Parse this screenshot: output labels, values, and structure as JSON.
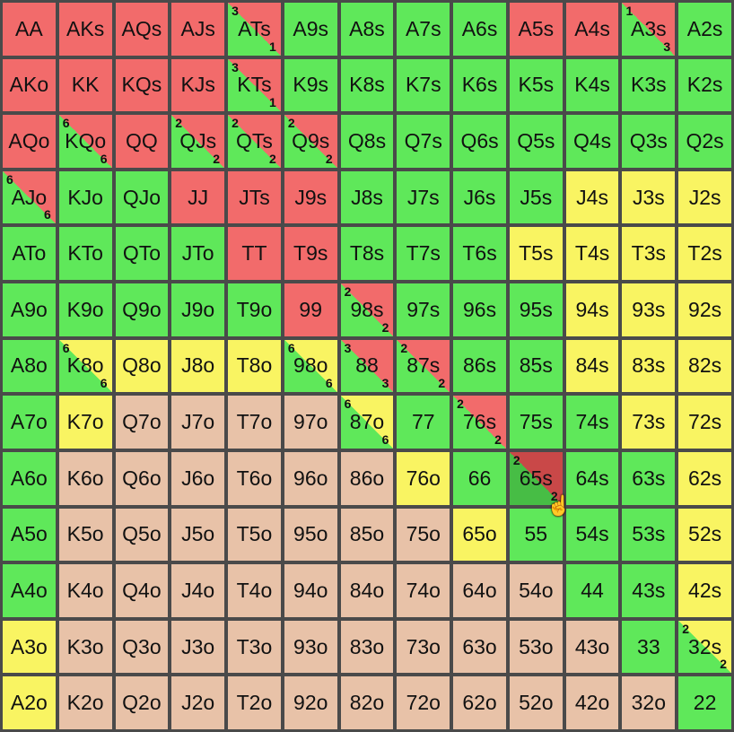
{
  "colors": {
    "red": "#f26b6b",
    "green": "#5fe85a",
    "yellow": "#f9f462",
    "peach": "#e8c2a8",
    "darkred": "#c94848",
    "darkgreen": "#47bd45"
  },
  "rows": [
    [
      {
        "hand": "AA",
        "c": "red"
      },
      {
        "hand": "AKs",
        "c": "red"
      },
      {
        "hand": "AQs",
        "c": "red"
      },
      {
        "hand": "AJs",
        "c": "red"
      },
      {
        "hand": "ATs",
        "c": "split",
        "c1": "red",
        "c2": "green",
        "top": "3",
        "bottom": "1"
      },
      {
        "hand": "A9s",
        "c": "green"
      },
      {
        "hand": "A8s",
        "c": "green"
      },
      {
        "hand": "A7s",
        "c": "green"
      },
      {
        "hand": "A6s",
        "c": "green"
      },
      {
        "hand": "A5s",
        "c": "red"
      },
      {
        "hand": "A4s",
        "c": "red"
      },
      {
        "hand": "A3s",
        "c": "split",
        "c1": "red",
        "c2": "green",
        "top": "1",
        "bottom": "3"
      },
      {
        "hand": "A2s",
        "c": "green"
      }
    ],
    [
      {
        "hand": "AKo",
        "c": "red"
      },
      {
        "hand": "KK",
        "c": "red"
      },
      {
        "hand": "KQs",
        "c": "red"
      },
      {
        "hand": "KJs",
        "c": "red"
      },
      {
        "hand": "KTs",
        "c": "split",
        "c1": "red",
        "c2": "green",
        "top": "3",
        "bottom": "1"
      },
      {
        "hand": "K9s",
        "c": "green"
      },
      {
        "hand": "K8s",
        "c": "green"
      },
      {
        "hand": "K7s",
        "c": "green"
      },
      {
        "hand": "K6s",
        "c": "green"
      },
      {
        "hand": "K5s",
        "c": "green"
      },
      {
        "hand": "K4s",
        "c": "green"
      },
      {
        "hand": "K3s",
        "c": "green"
      },
      {
        "hand": "K2s",
        "c": "green"
      }
    ],
    [
      {
        "hand": "AQo",
        "c": "red"
      },
      {
        "hand": "KQo",
        "c": "split",
        "c1": "red",
        "c2": "green",
        "top": "6",
        "bottom": "6"
      },
      {
        "hand": "QQ",
        "c": "red"
      },
      {
        "hand": "QJs",
        "c": "split",
        "c1": "red",
        "c2": "green",
        "top": "2",
        "bottom": "2"
      },
      {
        "hand": "QTs",
        "c": "split",
        "c1": "red",
        "c2": "green",
        "top": "2",
        "bottom": "2"
      },
      {
        "hand": "Q9s",
        "c": "split",
        "c1": "red",
        "c2": "green",
        "top": "2",
        "bottom": "2"
      },
      {
        "hand": "Q8s",
        "c": "green"
      },
      {
        "hand": "Q7s",
        "c": "green"
      },
      {
        "hand": "Q6s",
        "c": "green"
      },
      {
        "hand": "Q5s",
        "c": "green"
      },
      {
        "hand": "Q4s",
        "c": "green"
      },
      {
        "hand": "Q3s",
        "c": "green"
      },
      {
        "hand": "Q2s",
        "c": "green"
      }
    ],
    [
      {
        "hand": "AJo",
        "c": "split",
        "c1": "red",
        "c2": "green",
        "top": "6",
        "bottom": "6"
      },
      {
        "hand": "KJo",
        "c": "green"
      },
      {
        "hand": "QJo",
        "c": "green"
      },
      {
        "hand": "JJ",
        "c": "red"
      },
      {
        "hand": "JTs",
        "c": "red"
      },
      {
        "hand": "J9s",
        "c": "red"
      },
      {
        "hand": "J8s",
        "c": "green"
      },
      {
        "hand": "J7s",
        "c": "green"
      },
      {
        "hand": "J6s",
        "c": "green"
      },
      {
        "hand": "J5s",
        "c": "green"
      },
      {
        "hand": "J4s",
        "c": "yellow"
      },
      {
        "hand": "J3s",
        "c": "yellow"
      },
      {
        "hand": "J2s",
        "c": "yellow"
      }
    ],
    [
      {
        "hand": "ATo",
        "c": "green"
      },
      {
        "hand": "KTo",
        "c": "green"
      },
      {
        "hand": "QTo",
        "c": "green"
      },
      {
        "hand": "JTo",
        "c": "green"
      },
      {
        "hand": "TT",
        "c": "red"
      },
      {
        "hand": "T9s",
        "c": "red"
      },
      {
        "hand": "T8s",
        "c": "green"
      },
      {
        "hand": "T7s",
        "c": "green"
      },
      {
        "hand": "T6s",
        "c": "green"
      },
      {
        "hand": "T5s",
        "c": "yellow"
      },
      {
        "hand": "T4s",
        "c": "yellow"
      },
      {
        "hand": "T3s",
        "c": "yellow"
      },
      {
        "hand": "T2s",
        "c": "yellow"
      }
    ],
    [
      {
        "hand": "A9o",
        "c": "green"
      },
      {
        "hand": "K9o",
        "c": "green"
      },
      {
        "hand": "Q9o",
        "c": "green"
      },
      {
        "hand": "J9o",
        "c": "green"
      },
      {
        "hand": "T9o",
        "c": "green"
      },
      {
        "hand": "99",
        "c": "red"
      },
      {
        "hand": "98s",
        "c": "split",
        "c1": "red",
        "c2": "green",
        "top": "2",
        "bottom": "2"
      },
      {
        "hand": "97s",
        "c": "green"
      },
      {
        "hand": "96s",
        "c": "green"
      },
      {
        "hand": "95s",
        "c": "green"
      },
      {
        "hand": "94s",
        "c": "yellow"
      },
      {
        "hand": "93s",
        "c": "yellow"
      },
      {
        "hand": "92s",
        "c": "yellow"
      }
    ],
    [
      {
        "hand": "A8o",
        "c": "green"
      },
      {
        "hand": "K8o",
        "c": "split",
        "c1": "yellow",
        "c2": "green",
        "top": "6",
        "bottom": "6"
      },
      {
        "hand": "Q8o",
        "c": "yellow"
      },
      {
        "hand": "J8o",
        "c": "yellow"
      },
      {
        "hand": "T8o",
        "c": "yellow"
      },
      {
        "hand": "98o",
        "c": "split",
        "c1": "yellow",
        "c2": "green",
        "top": "6",
        "bottom": "6"
      },
      {
        "hand": "88",
        "c": "split",
        "c1": "red",
        "c2": "green",
        "top": "3",
        "bottom": "3"
      },
      {
        "hand": "87s",
        "c": "split",
        "c1": "red",
        "c2": "green",
        "top": "2",
        "bottom": "2"
      },
      {
        "hand": "86s",
        "c": "green"
      },
      {
        "hand": "85s",
        "c": "green"
      },
      {
        "hand": "84s",
        "c": "yellow"
      },
      {
        "hand": "83s",
        "c": "yellow"
      },
      {
        "hand": "82s",
        "c": "yellow"
      }
    ],
    [
      {
        "hand": "A7o",
        "c": "green"
      },
      {
        "hand": "K7o",
        "c": "yellow"
      },
      {
        "hand": "Q7o",
        "c": "peach"
      },
      {
        "hand": "J7o",
        "c": "peach"
      },
      {
        "hand": "T7o",
        "c": "peach"
      },
      {
        "hand": "97o",
        "c": "peach"
      },
      {
        "hand": "87o",
        "c": "split",
        "c1": "yellow",
        "c2": "green",
        "top": "6",
        "bottom": "6"
      },
      {
        "hand": "77",
        "c": "green"
      },
      {
        "hand": "76s",
        "c": "split",
        "c1": "red",
        "c2": "green",
        "top": "2",
        "bottom": "2"
      },
      {
        "hand": "75s",
        "c": "green"
      },
      {
        "hand": "74s",
        "c": "green"
      },
      {
        "hand": "73s",
        "c": "yellow"
      },
      {
        "hand": "72s",
        "c": "yellow"
      }
    ],
    [
      {
        "hand": "A6o",
        "c": "green"
      },
      {
        "hand": "K6o",
        "c": "peach"
      },
      {
        "hand": "Q6o",
        "c": "peach"
      },
      {
        "hand": "J6o",
        "c": "peach"
      },
      {
        "hand": "T6o",
        "c": "peach"
      },
      {
        "hand": "96o",
        "c": "peach"
      },
      {
        "hand": "86o",
        "c": "peach"
      },
      {
        "hand": "76o",
        "c": "yellow"
      },
      {
        "hand": "66",
        "c": "green"
      },
      {
        "hand": "65s",
        "c": "split",
        "c1": "darkred",
        "c2": "darkgreen",
        "top": "2",
        "bottom": "2"
      },
      {
        "hand": "64s",
        "c": "green"
      },
      {
        "hand": "63s",
        "c": "green"
      },
      {
        "hand": "62s",
        "c": "yellow"
      }
    ],
    [
      {
        "hand": "A5o",
        "c": "green"
      },
      {
        "hand": "K5o",
        "c": "peach"
      },
      {
        "hand": "Q5o",
        "c": "peach"
      },
      {
        "hand": "J5o",
        "c": "peach"
      },
      {
        "hand": "T5o",
        "c": "peach"
      },
      {
        "hand": "95o",
        "c": "peach"
      },
      {
        "hand": "85o",
        "c": "peach"
      },
      {
        "hand": "75o",
        "c": "peach"
      },
      {
        "hand": "65o",
        "c": "yellow"
      },
      {
        "hand": "55",
        "c": "green"
      },
      {
        "hand": "54s",
        "c": "green"
      },
      {
        "hand": "53s",
        "c": "green"
      },
      {
        "hand": "52s",
        "c": "yellow"
      }
    ],
    [
      {
        "hand": "A4o",
        "c": "green"
      },
      {
        "hand": "K4o",
        "c": "peach"
      },
      {
        "hand": "Q4o",
        "c": "peach"
      },
      {
        "hand": "J4o",
        "c": "peach"
      },
      {
        "hand": "T4o",
        "c": "peach"
      },
      {
        "hand": "94o",
        "c": "peach"
      },
      {
        "hand": "84o",
        "c": "peach"
      },
      {
        "hand": "74o",
        "c": "peach"
      },
      {
        "hand": "64o",
        "c": "peach"
      },
      {
        "hand": "54o",
        "c": "peach"
      },
      {
        "hand": "44",
        "c": "green"
      },
      {
        "hand": "43s",
        "c": "green"
      },
      {
        "hand": "42s",
        "c": "yellow"
      }
    ],
    [
      {
        "hand": "A3o",
        "c": "yellow"
      },
      {
        "hand": "K3o",
        "c": "peach"
      },
      {
        "hand": "Q3o",
        "c": "peach"
      },
      {
        "hand": "J3o",
        "c": "peach"
      },
      {
        "hand": "T3o",
        "c": "peach"
      },
      {
        "hand": "93o",
        "c": "peach"
      },
      {
        "hand": "83o",
        "c": "peach"
      },
      {
        "hand": "73o",
        "c": "peach"
      },
      {
        "hand": "63o",
        "c": "peach"
      },
      {
        "hand": "53o",
        "c": "peach"
      },
      {
        "hand": "43o",
        "c": "peach"
      },
      {
        "hand": "33",
        "c": "green"
      },
      {
        "hand": "32s",
        "c": "split",
        "c1": "yellow",
        "c2": "green",
        "top": "2",
        "bottom": "2"
      }
    ],
    [
      {
        "hand": "A2o",
        "c": "yellow"
      },
      {
        "hand": "K2o",
        "c": "peach"
      },
      {
        "hand": "Q2o",
        "c": "peach"
      },
      {
        "hand": "J2o",
        "c": "peach"
      },
      {
        "hand": "T2o",
        "c": "peach"
      },
      {
        "hand": "92o",
        "c": "peach"
      },
      {
        "hand": "82o",
        "c": "peach"
      },
      {
        "hand": "72o",
        "c": "peach"
      },
      {
        "hand": "62o",
        "c": "peach"
      },
      {
        "hand": "52o",
        "c": "peach"
      },
      {
        "hand": "42o",
        "c": "peach"
      },
      {
        "hand": "32o",
        "c": "peach"
      },
      {
        "hand": "22",
        "c": "green"
      }
    ]
  ],
  "cursor": {
    "icon": "hand-pointer-icon",
    "glyph": "☝",
    "row": 8,
    "col": 9
  }
}
